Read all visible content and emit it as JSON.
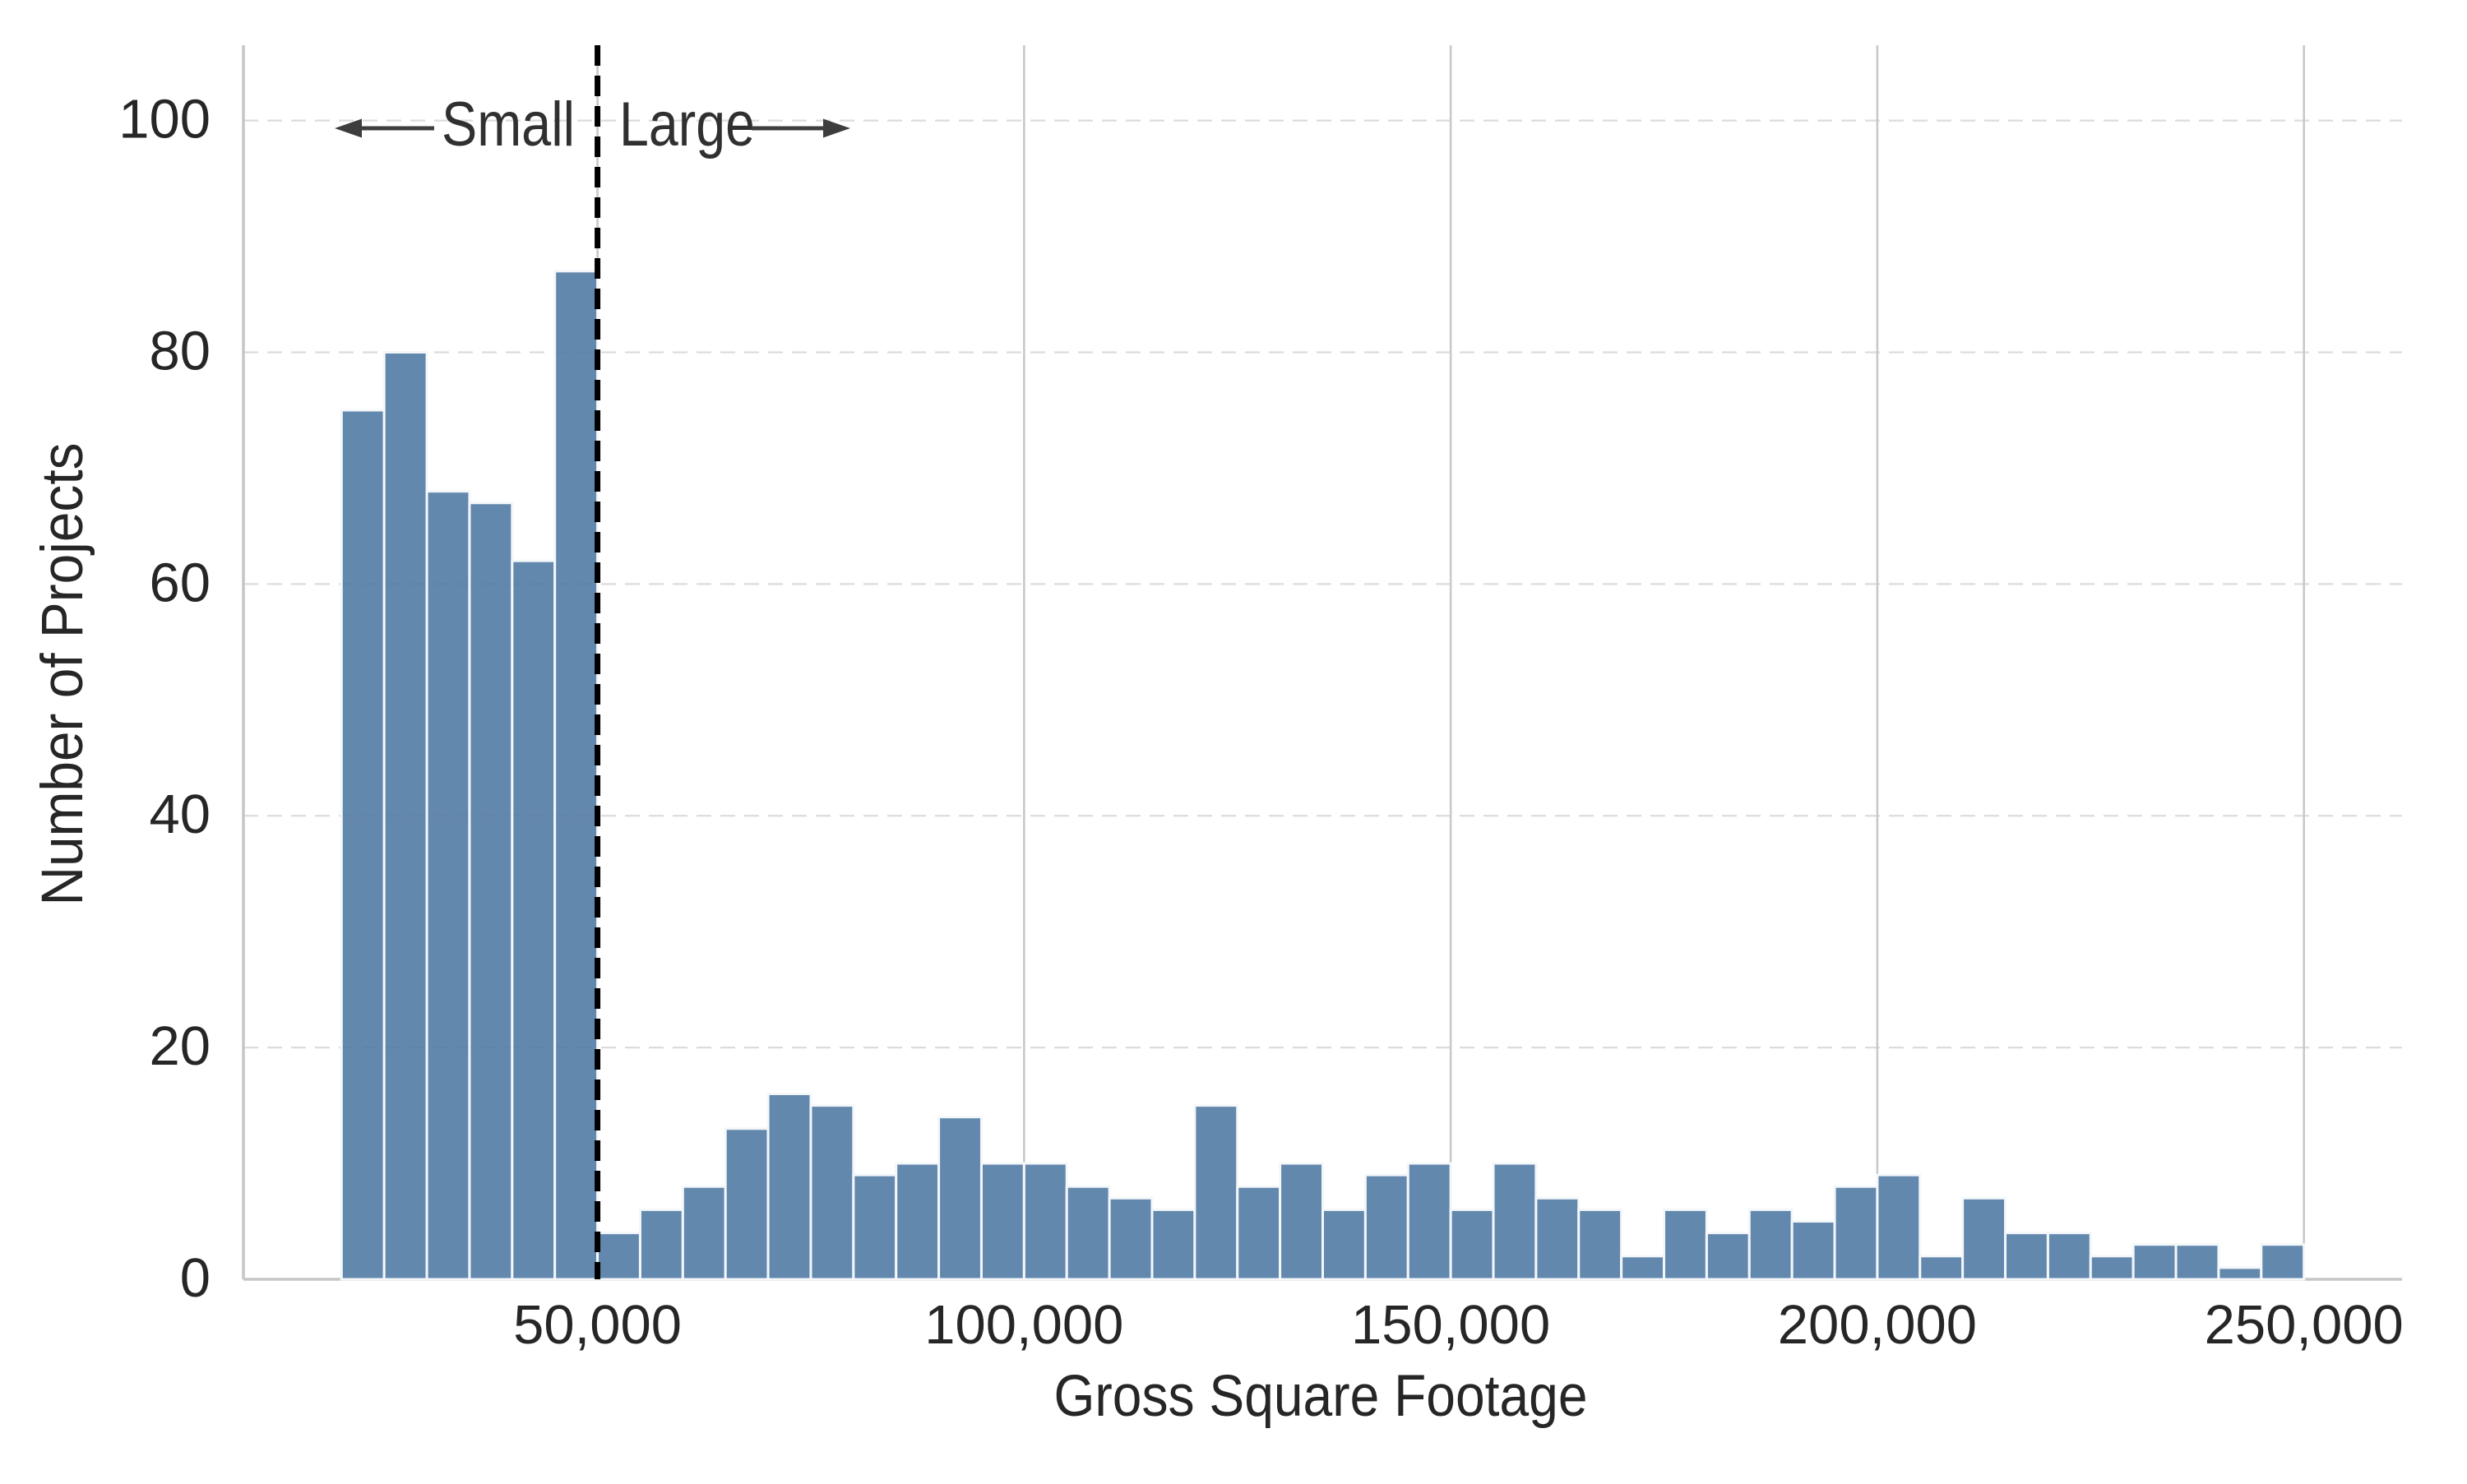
{
  "chart_data": {
    "type": "histogram",
    "xlabel": "Gross Square Footage",
    "ylabel": "Number of Projects",
    "bin_start": 20000,
    "bin_width": 5000,
    "values": [
      75,
      80,
      68,
      67,
      62,
      87,
      4,
      6,
      8,
      13,
      16,
      15,
      9,
      10,
      14,
      10,
      10,
      8,
      7,
      6,
      15,
      8,
      10,
      6,
      9,
      10,
      6,
      10,
      7,
      6,
      2,
      6,
      4,
      6,
      5,
      8,
      9,
      2,
      7,
      4,
      4,
      2,
      3,
      3,
      1,
      3
    ],
    "xlim": [
      8500,
      261500
    ],
    "ylim": [
      0,
      106.5
    ],
    "xticks": [
      {
        "value": 50000,
        "label": "50,000"
      },
      {
        "value": 100000,
        "label": "100,000"
      },
      {
        "value": 150000,
        "label": "150,000"
      },
      {
        "value": 200000,
        "label": "200,000"
      },
      {
        "value": 250000,
        "label": "250,000"
      }
    ],
    "yticks": [
      {
        "value": 0,
        "label": "0"
      },
      {
        "value": 20,
        "label": "20"
      },
      {
        "value": 40,
        "label": "40"
      },
      {
        "value": 60,
        "label": "60"
      },
      {
        "value": 80,
        "label": "80"
      },
      {
        "value": 100,
        "label": "100"
      }
    ],
    "grid": {
      "horizontal": "dashed",
      "vertical": "solid"
    },
    "annotation": {
      "threshold_x": 50000,
      "left_label": "Small",
      "right_label": "Large"
    },
    "colors": {
      "bar": "#4d78a2",
      "bar_edge": "#f4f7fa",
      "grid_h": "#dcdcdc",
      "grid_v": "#c9c9c9",
      "spine": "#c6c6c6",
      "vline": "#000000",
      "text": "#262626",
      "annotation": "#3d3d3d"
    }
  }
}
